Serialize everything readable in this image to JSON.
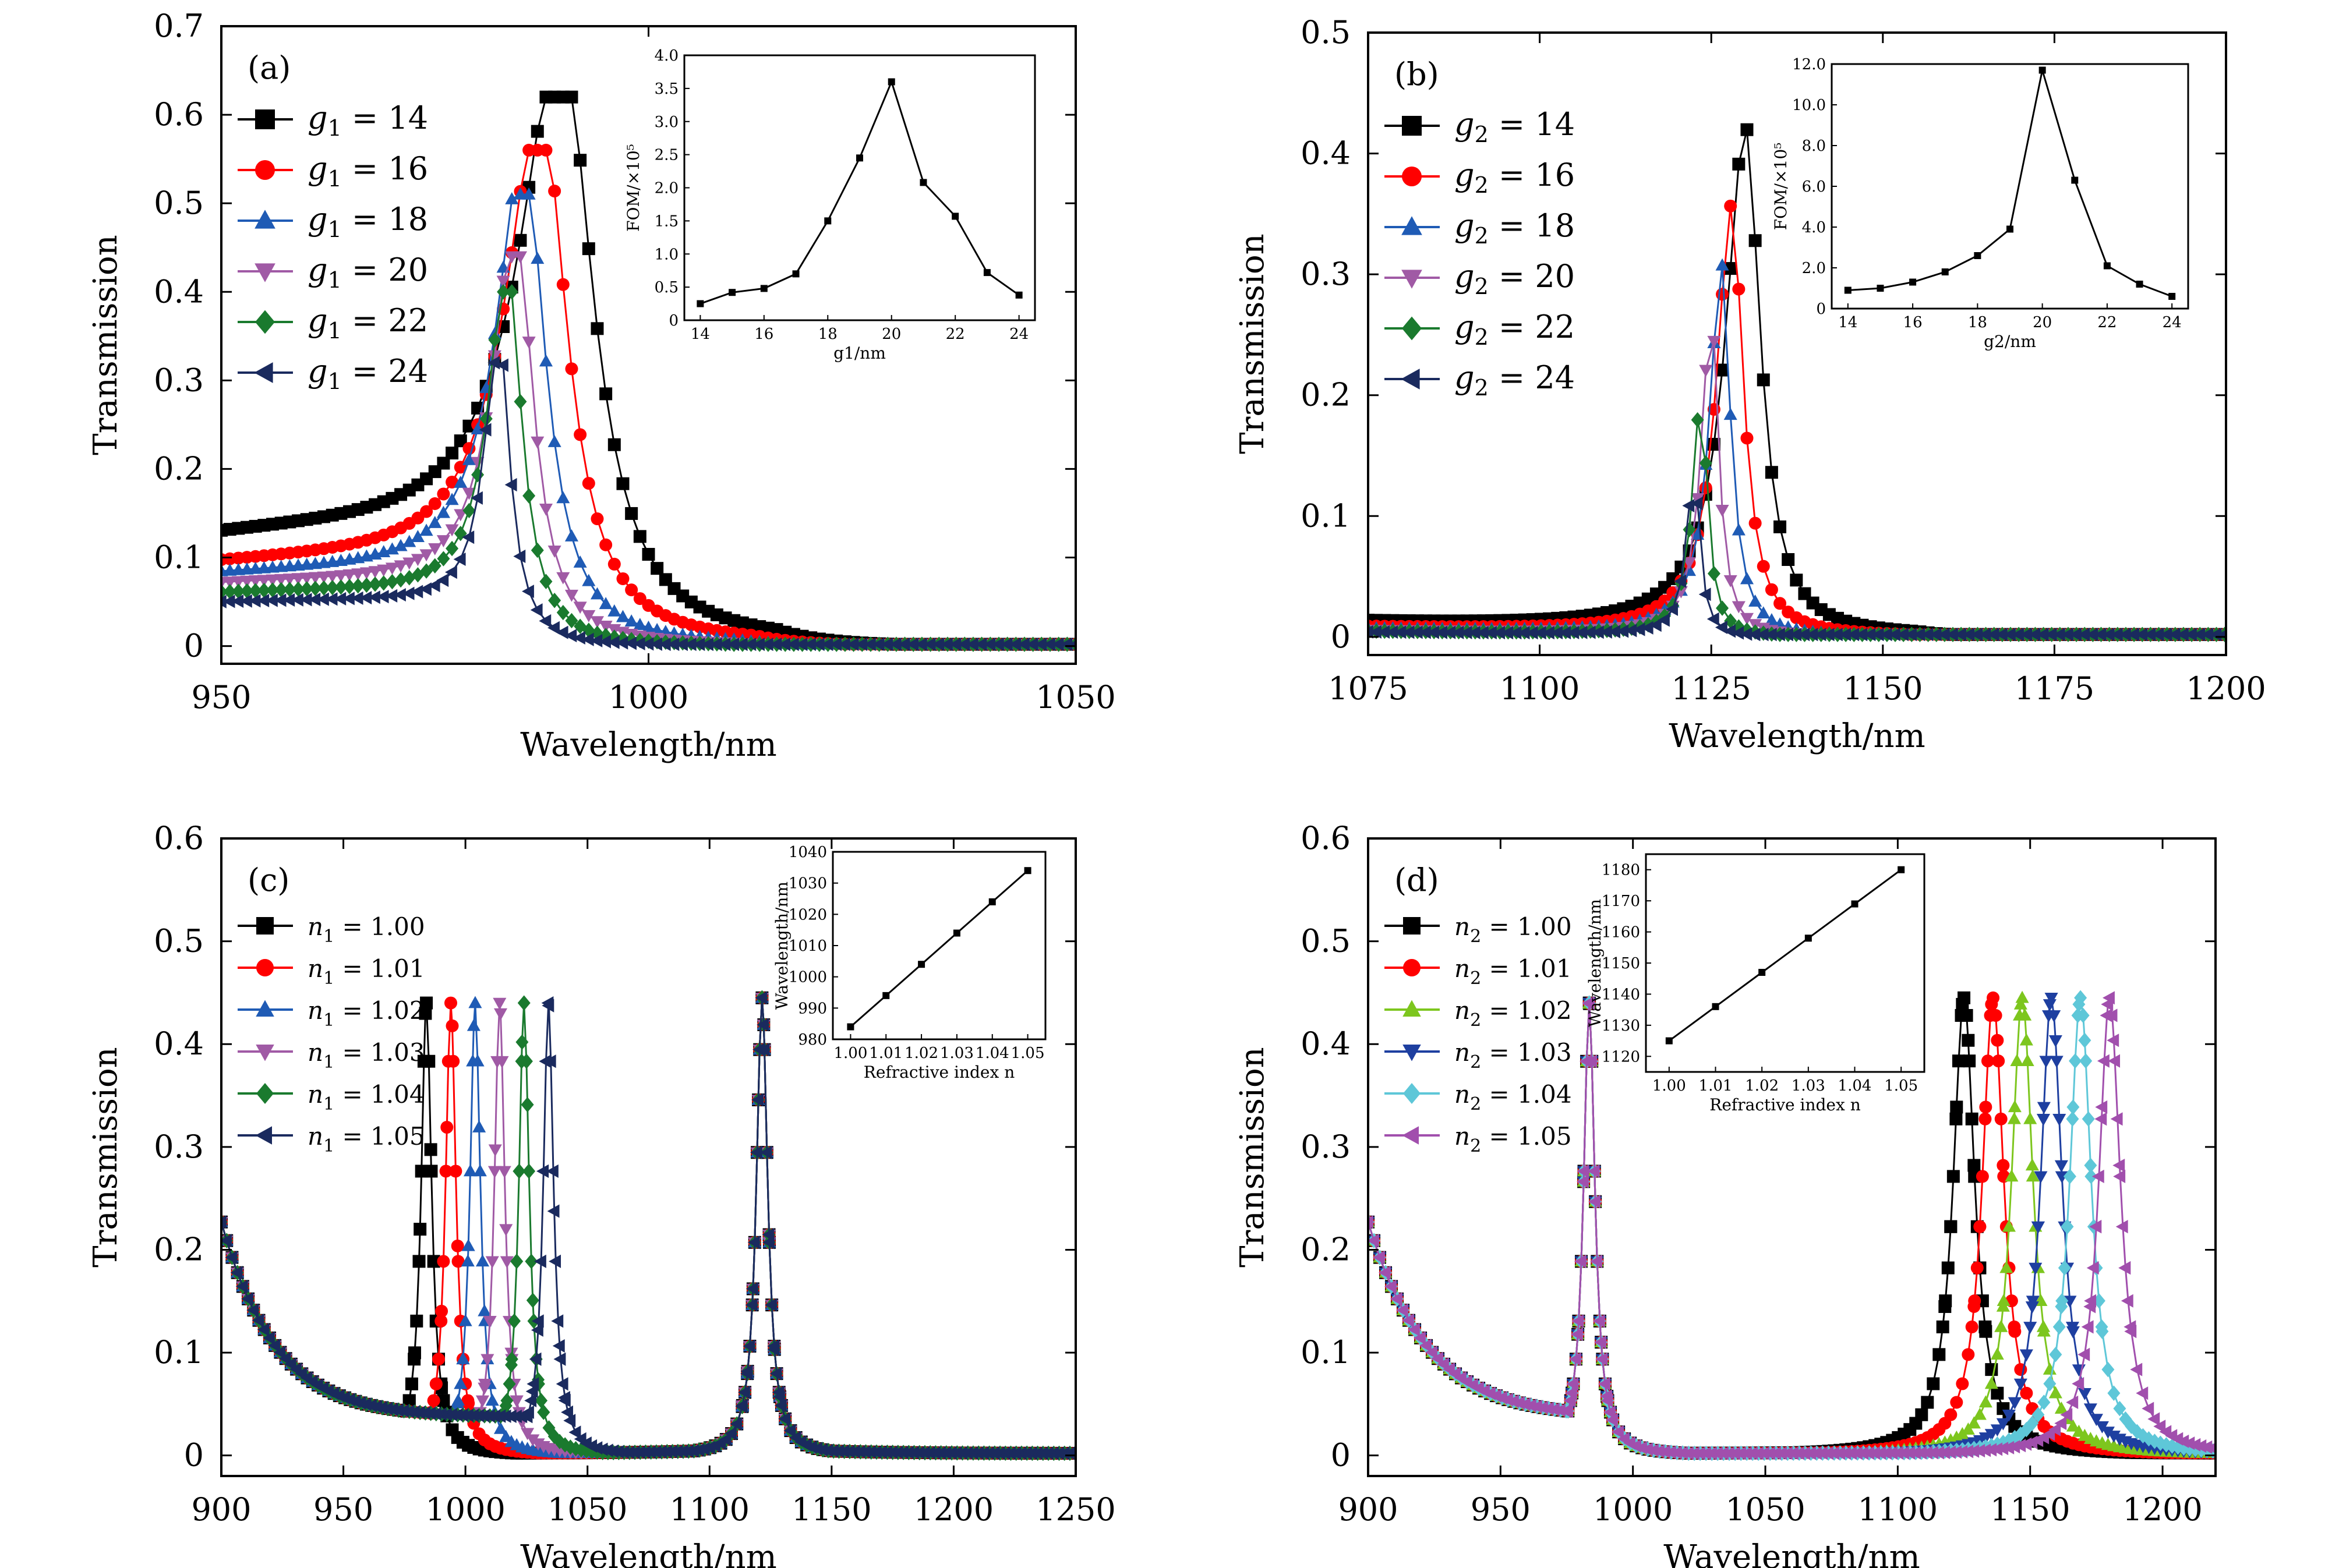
{
  "chart_data": [
    {
      "panel": "(a)",
      "type": "line",
      "xlabel": "Wavelength/nm",
      "ylabel": "Transmission",
      "xlim": [
        950,
        1050
      ],
      "ylim": [
        -0.02,
        0.7
      ],
      "xticks": [
        950,
        1000,
        1050
      ],
      "yticks": [
        0,
        0.1,
        0.2,
        0.3,
        0.4,
        0.5,
        0.6,
        0.7
      ],
      "legend_position": "top-left",
      "series": [
        {
          "name": "g1 = 14",
          "legend_sym": "g",
          "legend_sub": "1",
          "legend_val": "14",
          "color": "#000000",
          "marker": "square",
          "peak": 990,
          "height": 0.62,
          "width": 6.0,
          "base": 0.12
        },
        {
          "name": "g1 = 16",
          "legend_sym": "g",
          "legend_sub": "1",
          "legend_val": "16",
          "color": "#ff0000",
          "marker": "circle",
          "peak": 987.5,
          "height": 0.56,
          "width": 5.0,
          "base": 0.09
        },
        {
          "name": "g1 = 18",
          "legend_sym": "g",
          "legend_sub": "1",
          "legend_val": "18",
          "color": "#1f5bb5",
          "marker": "triangle-up",
          "peak": 985.5,
          "height": 0.51,
          "width": 4.0,
          "base": 0.08
        },
        {
          "name": "g1 = 20",
          "legend_sym": "g",
          "legend_sub": "1",
          "legend_val": "20",
          "color": "#a05aa5",
          "marker": "triangle-down",
          "peak": 984.5,
          "height": 0.44,
          "width": 3.2,
          "base": 0.07
        },
        {
          "name": "g1 = 22",
          "legend_sym": "g",
          "legend_sub": "1",
          "legend_val": "22",
          "color": "#1a7a2e",
          "marker": "diamond",
          "peak": 983.5,
          "height": 0.4,
          "width": 2.6,
          "base": 0.06
        },
        {
          "name": "g1 = 24",
          "legend_sym": "g",
          "legend_sub": "1",
          "legend_val": "24",
          "color": "#1a2a5e",
          "marker": "triangle-left",
          "peak": 982.5,
          "height": 0.32,
          "width": 2.0,
          "base": 0.05
        }
      ],
      "inset": {
        "xlabel": "g1/nm",
        "ylabel": "FOM/×10⁵",
        "xlim": [
          13.5,
          24.5
        ],
        "ylim": [
          0,
          4
        ],
        "xticks": [
          14,
          16,
          18,
          20,
          22,
          24
        ],
        "yticks": [
          0,
          0.5,
          1.0,
          1.5,
          2.0,
          2.5,
          3.0,
          3.5,
          4.0
        ],
        "ytick_labels": [
          "0",
          "0.5",
          "1.0",
          "1.5",
          "2.0",
          "2.5",
          "3.0",
          "3.5",
          "4.0"
        ],
        "x": [
          14,
          15,
          16,
          17,
          18,
          19,
          20,
          21,
          22,
          23,
          24
        ],
        "y": [
          0.25,
          0.42,
          0.48,
          0.7,
          1.5,
          2.45,
          3.6,
          2.08,
          1.57,
          0.72,
          0.38
        ]
      }
    },
    {
      "panel": "(b)",
      "type": "line",
      "xlabel": "Wavelength/nm",
      "ylabel": "Transmission",
      "xlim": [
        1075,
        1200
      ],
      "ylim": [
        -0.015,
        0.5
      ],
      "xticks": [
        1075,
        1100,
        1125,
        1150,
        1175,
        1200
      ],
      "yticks": [
        0,
        0.1,
        0.2,
        0.3,
        0.4,
        0.5
      ],
      "legend_position": "top-left",
      "series": [
        {
          "name": "g2 = 14",
          "legend_sym": "g",
          "legend_sub": "2",
          "legend_val": "14",
          "color": "#000000",
          "marker": "square",
          "peak": 1130,
          "height": 0.425,
          "width": 3.5,
          "base": 0.045
        },
        {
          "name": "g2 = 16",
          "legend_sym": "g",
          "legend_sub": "2",
          "legend_val": "16",
          "color": "#ff0000",
          "marker": "circle",
          "peak": 1128,
          "height": 0.36,
          "width": 2.7,
          "base": 0.03
        },
        {
          "name": "g2 = 18",
          "legend_sym": "g",
          "legend_sub": "2",
          "legend_val": "18",
          "color": "#1f5bb5",
          "marker": "triangle-up",
          "peak": 1126.5,
          "height": 0.31,
          "width": 2.1,
          "base": 0.025
        },
        {
          "name": "g2 = 20",
          "legend_sym": "g",
          "legend_sub": "2",
          "legend_val": "20",
          "color": "#a05aa5",
          "marker": "triangle-down",
          "peak": 1125,
          "height": 0.27,
          "width": 1.7,
          "base": 0.02
        },
        {
          "name": "g2 = 22",
          "legend_sym": "g",
          "legend_sub": "2",
          "legend_val": "22",
          "color": "#1a7a2e",
          "marker": "diamond",
          "peak": 1123.5,
          "height": 0.2,
          "width": 1.5,
          "base": 0.017
        },
        {
          "name": "g2 = 24",
          "legend_sym": "g",
          "legend_sub": "2",
          "legend_val": "24",
          "color": "#1a2a5e",
          "marker": "triangle-left",
          "peak": 1122.5,
          "height": 0.14,
          "width": 1.3,
          "base": 0.015
        }
      ],
      "inset": {
        "xlabel": "g2/nm",
        "ylabel": "FOM/×10⁵",
        "xlim": [
          13.5,
          24.5
        ],
        "ylim": [
          0,
          12
        ],
        "xticks": [
          14,
          16,
          18,
          20,
          22,
          24
        ],
        "yticks": [
          0,
          2,
          4,
          6,
          8,
          10,
          12
        ],
        "ytick_labels": [
          "0",
          "2.0",
          "4.0",
          "6.0",
          "8.0",
          "10.0",
          "12.0"
        ],
        "x": [
          14,
          15,
          16,
          17,
          18,
          19,
          20,
          21,
          22,
          23,
          24
        ],
        "y": [
          0.9,
          1.0,
          1.3,
          1.8,
          2.6,
          3.9,
          11.7,
          6.3,
          2.1,
          1.2,
          0.6
        ]
      }
    },
    {
      "panel": "(c)",
      "type": "line",
      "xlabel": "Wavelength/nm",
      "ylabel": "Transmission",
      "xlim": [
        900,
        1250
      ],
      "ylim": [
        -0.02,
        0.6
      ],
      "xticks": [
        900,
        950,
        1000,
        1050,
        1100,
        1150,
        1200,
        1250
      ],
      "yticks": [
        0,
        0.1,
        0.2,
        0.3,
        0.4,
        0.5,
        0.6
      ],
      "legend_position": "top-left",
      "series": [
        {
          "name": "n1 = 1.00",
          "legend_sym": "n",
          "legend_sub": "1",
          "legend_val": "1.00",
          "color": "#000000",
          "marker": "square",
          "peak1": 984,
          "peak2": 1121.5
        },
        {
          "name": "n1 = 1.01",
          "legend_sym": "n",
          "legend_sub": "1",
          "legend_val": "1.01",
          "color": "#ff0000",
          "marker": "circle",
          "peak1": 994,
          "peak2": 1121.5
        },
        {
          "name": "n1 = 1.02",
          "legend_sym": "n",
          "legend_sub": "1",
          "legend_val": "1.02",
          "color": "#1f5bb5",
          "marker": "triangle-up",
          "peak1": 1004,
          "peak2": 1121.5
        },
        {
          "name": "n1 = 1.03",
          "legend_sym": "n",
          "legend_sub": "1",
          "legend_val": "1.03",
          "color": "#a05aa5",
          "marker": "triangle-down",
          "peak1": 1014,
          "peak2": 1121.5
        },
        {
          "name": "n1 = 1.04",
          "legend_sym": "n",
          "legend_sub": "1",
          "legend_val": "1.04",
          "color": "#1a7a2e",
          "marker": "diamond",
          "peak1": 1024,
          "peak2": 1121.5
        },
        {
          "name": "n1 = 1.05",
          "legend_sym": "n",
          "legend_sub": "1",
          "legend_val": "1.05",
          "color": "#1a2a5e",
          "marker": "triangle-left",
          "peak1": 1034,
          "peak2": 1121.5
        }
      ],
      "inset": {
        "xlabel": "Refractive index n",
        "ylabel": "Wavelength/nm",
        "xlim": [
          0.995,
          1.055
        ],
        "ylim": [
          980,
          1040
        ],
        "xticks": [
          1.0,
          1.01,
          1.02,
          1.03,
          1.04,
          1.05
        ],
        "xtick_labels": [
          "1.00",
          "1.01",
          "1.02",
          "1.03",
          "1.04",
          "1.05"
        ],
        "yticks": [
          980,
          990,
          1000,
          1010,
          1020,
          1030,
          1040
        ],
        "x": [
          1.0,
          1.01,
          1.02,
          1.03,
          1.04,
          1.05
        ],
        "y": [
          984,
          994,
          1004,
          1014,
          1024,
          1034
        ]
      }
    },
    {
      "panel": "(d)",
      "type": "line",
      "xlabel": "Wavelength/nm",
      "ylabel": "Transmission",
      "xlim": [
        900,
        1220
      ],
      "ylim": [
        -0.02,
        0.6
      ],
      "xticks": [
        900,
        950,
        1000,
        1050,
        1100,
        1150,
        1200
      ],
      "yticks": [
        0,
        0.1,
        0.2,
        0.3,
        0.4,
        0.5,
        0.6
      ],
      "legend_position": "top-left",
      "series": [
        {
          "name": "n2 = 1.00",
          "legend_sym": "n",
          "legend_sub": "2",
          "legend_val": "1.00",
          "color": "#000000",
          "marker": "square",
          "peak1": 983.5,
          "peak2": 1125
        },
        {
          "name": "n2 = 1.01",
          "legend_sym": "n",
          "legend_sub": "2",
          "legend_val": "1.01",
          "color": "#ff0000",
          "marker": "circle",
          "peak1": 983.5,
          "peak2": 1136
        },
        {
          "name": "n2 = 1.02",
          "legend_sym": "n",
          "legend_sub": "2",
          "legend_val": "1.02",
          "color": "#7dc61e",
          "marker": "triangle-up",
          "peak1": 983.5,
          "peak2": 1147
        },
        {
          "name": "n2 = 1.03",
          "legend_sym": "n",
          "legend_sub": "2",
          "legend_val": "1.03",
          "color": "#1e3fa0",
          "marker": "triangle-down",
          "peak1": 983.5,
          "peak2": 1158
        },
        {
          "name": "n2 = 1.04",
          "legend_sym": "n",
          "legend_sub": "2",
          "legend_val": "1.04",
          "color": "#5ec7d8",
          "marker": "diamond",
          "peak1": 983.5,
          "peak2": 1169
        },
        {
          "name": "n2 = 1.05",
          "legend_sym": "n",
          "legend_sub": "2",
          "legend_val": "1.05",
          "color": "#a14fad",
          "marker": "triangle-left",
          "peak1": 983.5,
          "peak2": 1180
        }
      ],
      "inset": {
        "xlabel": "Refractive index n",
        "ylabel": "Wavelength/nm",
        "xlim": [
          0.995,
          1.055
        ],
        "ylim": [
          1115,
          1185
        ],
        "xticks": [
          1.0,
          1.01,
          1.02,
          1.03,
          1.04,
          1.05
        ],
        "xtick_labels": [
          "1.00",
          "1.01",
          "1.02",
          "1.03",
          "1.04",
          "1.05"
        ],
        "yticks": [
          1120,
          1130,
          1140,
          1150,
          1160,
          1170,
          1180
        ],
        "x": [
          1.0,
          1.01,
          1.02,
          1.03,
          1.04,
          1.05
        ],
        "y": [
          1125,
          1136,
          1147,
          1158,
          1169,
          1180
        ]
      }
    }
  ]
}
